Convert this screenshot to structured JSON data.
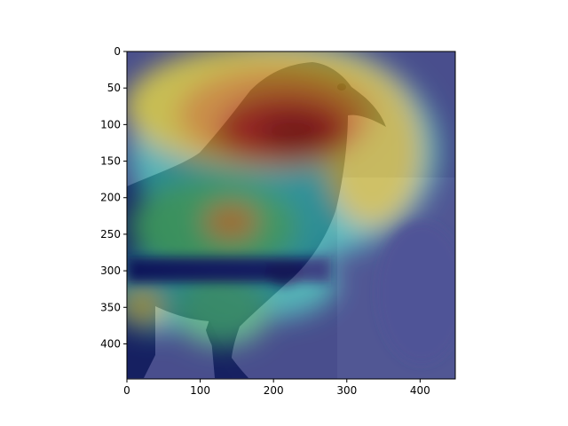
{
  "image": {
    "subject": "crow",
    "overlay": "heatmap-jet",
    "bird_color": "#111111",
    "background_color": "#8a7f7a"
  },
  "axes": {
    "x_ticks": [
      {
        "value": 0,
        "label": "0"
      },
      {
        "value": 100,
        "label": "100"
      },
      {
        "value": 200,
        "label": "200"
      },
      {
        "value": 300,
        "label": "300"
      },
      {
        "value": 400,
        "label": "400"
      }
    ],
    "y_ticks": [
      {
        "value": 0,
        "label": "0"
      },
      {
        "value": 50,
        "label": "50"
      },
      {
        "value": 100,
        "label": "100"
      },
      {
        "value": 150,
        "label": "150"
      },
      {
        "value": 200,
        "label": "200"
      },
      {
        "value": 250,
        "label": "250"
      },
      {
        "value": 300,
        "label": "300"
      },
      {
        "value": 350,
        "label": "350"
      },
      {
        "value": 400,
        "label": "400"
      }
    ],
    "xlim": [
      0,
      448
    ],
    "ylim": [
      448,
      0
    ]
  }
}
